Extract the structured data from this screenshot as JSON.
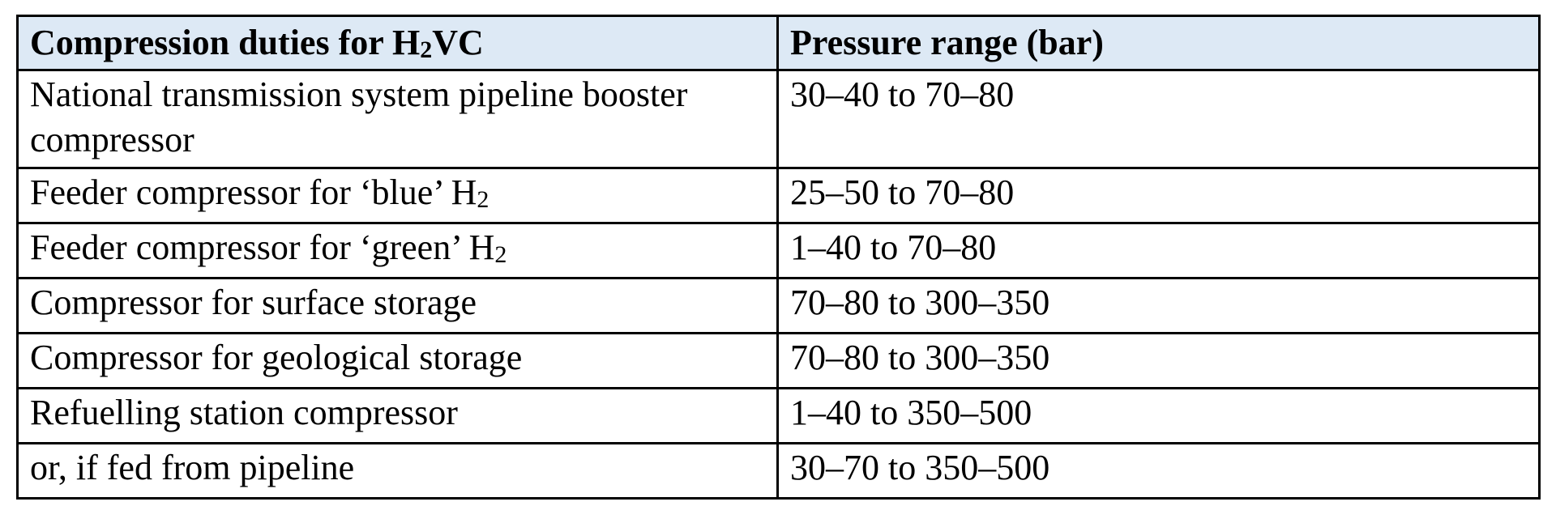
{
  "table": {
    "header": {
      "col1_prefix": "Compression duties for H",
      "col1_sub": "2",
      "col1_suffix": "VC",
      "col2": "Pressure range (bar)"
    },
    "rows": [
      {
        "duty": "National transmission system pipeline booster compressor",
        "range": "30–40 to 70–80"
      },
      {
        "duty_prefix": "Feeder compressor for ‘blue’ H",
        "duty_sub": "2",
        "range": "25–50 to 70–80"
      },
      {
        "duty_prefix": "Feeder compressor for ‘green’ H",
        "duty_sub": "2",
        "range": "1–40 to 70–80"
      },
      {
        "duty": "Compressor for surface storage",
        "range": "70–80 to 300–350"
      },
      {
        "duty": "Compressor for geological storage",
        "range": "70–80 to 300–350"
      },
      {
        "duty": "Refuelling station compressor",
        "range": "1–40 to 350–500"
      },
      {
        "duty": "or, if fed from pipeline",
        "range": "30–70 to 350–500"
      }
    ]
  },
  "colors": {
    "header_background": "#dde9f5",
    "border": "#000000",
    "text": "#000000"
  }
}
